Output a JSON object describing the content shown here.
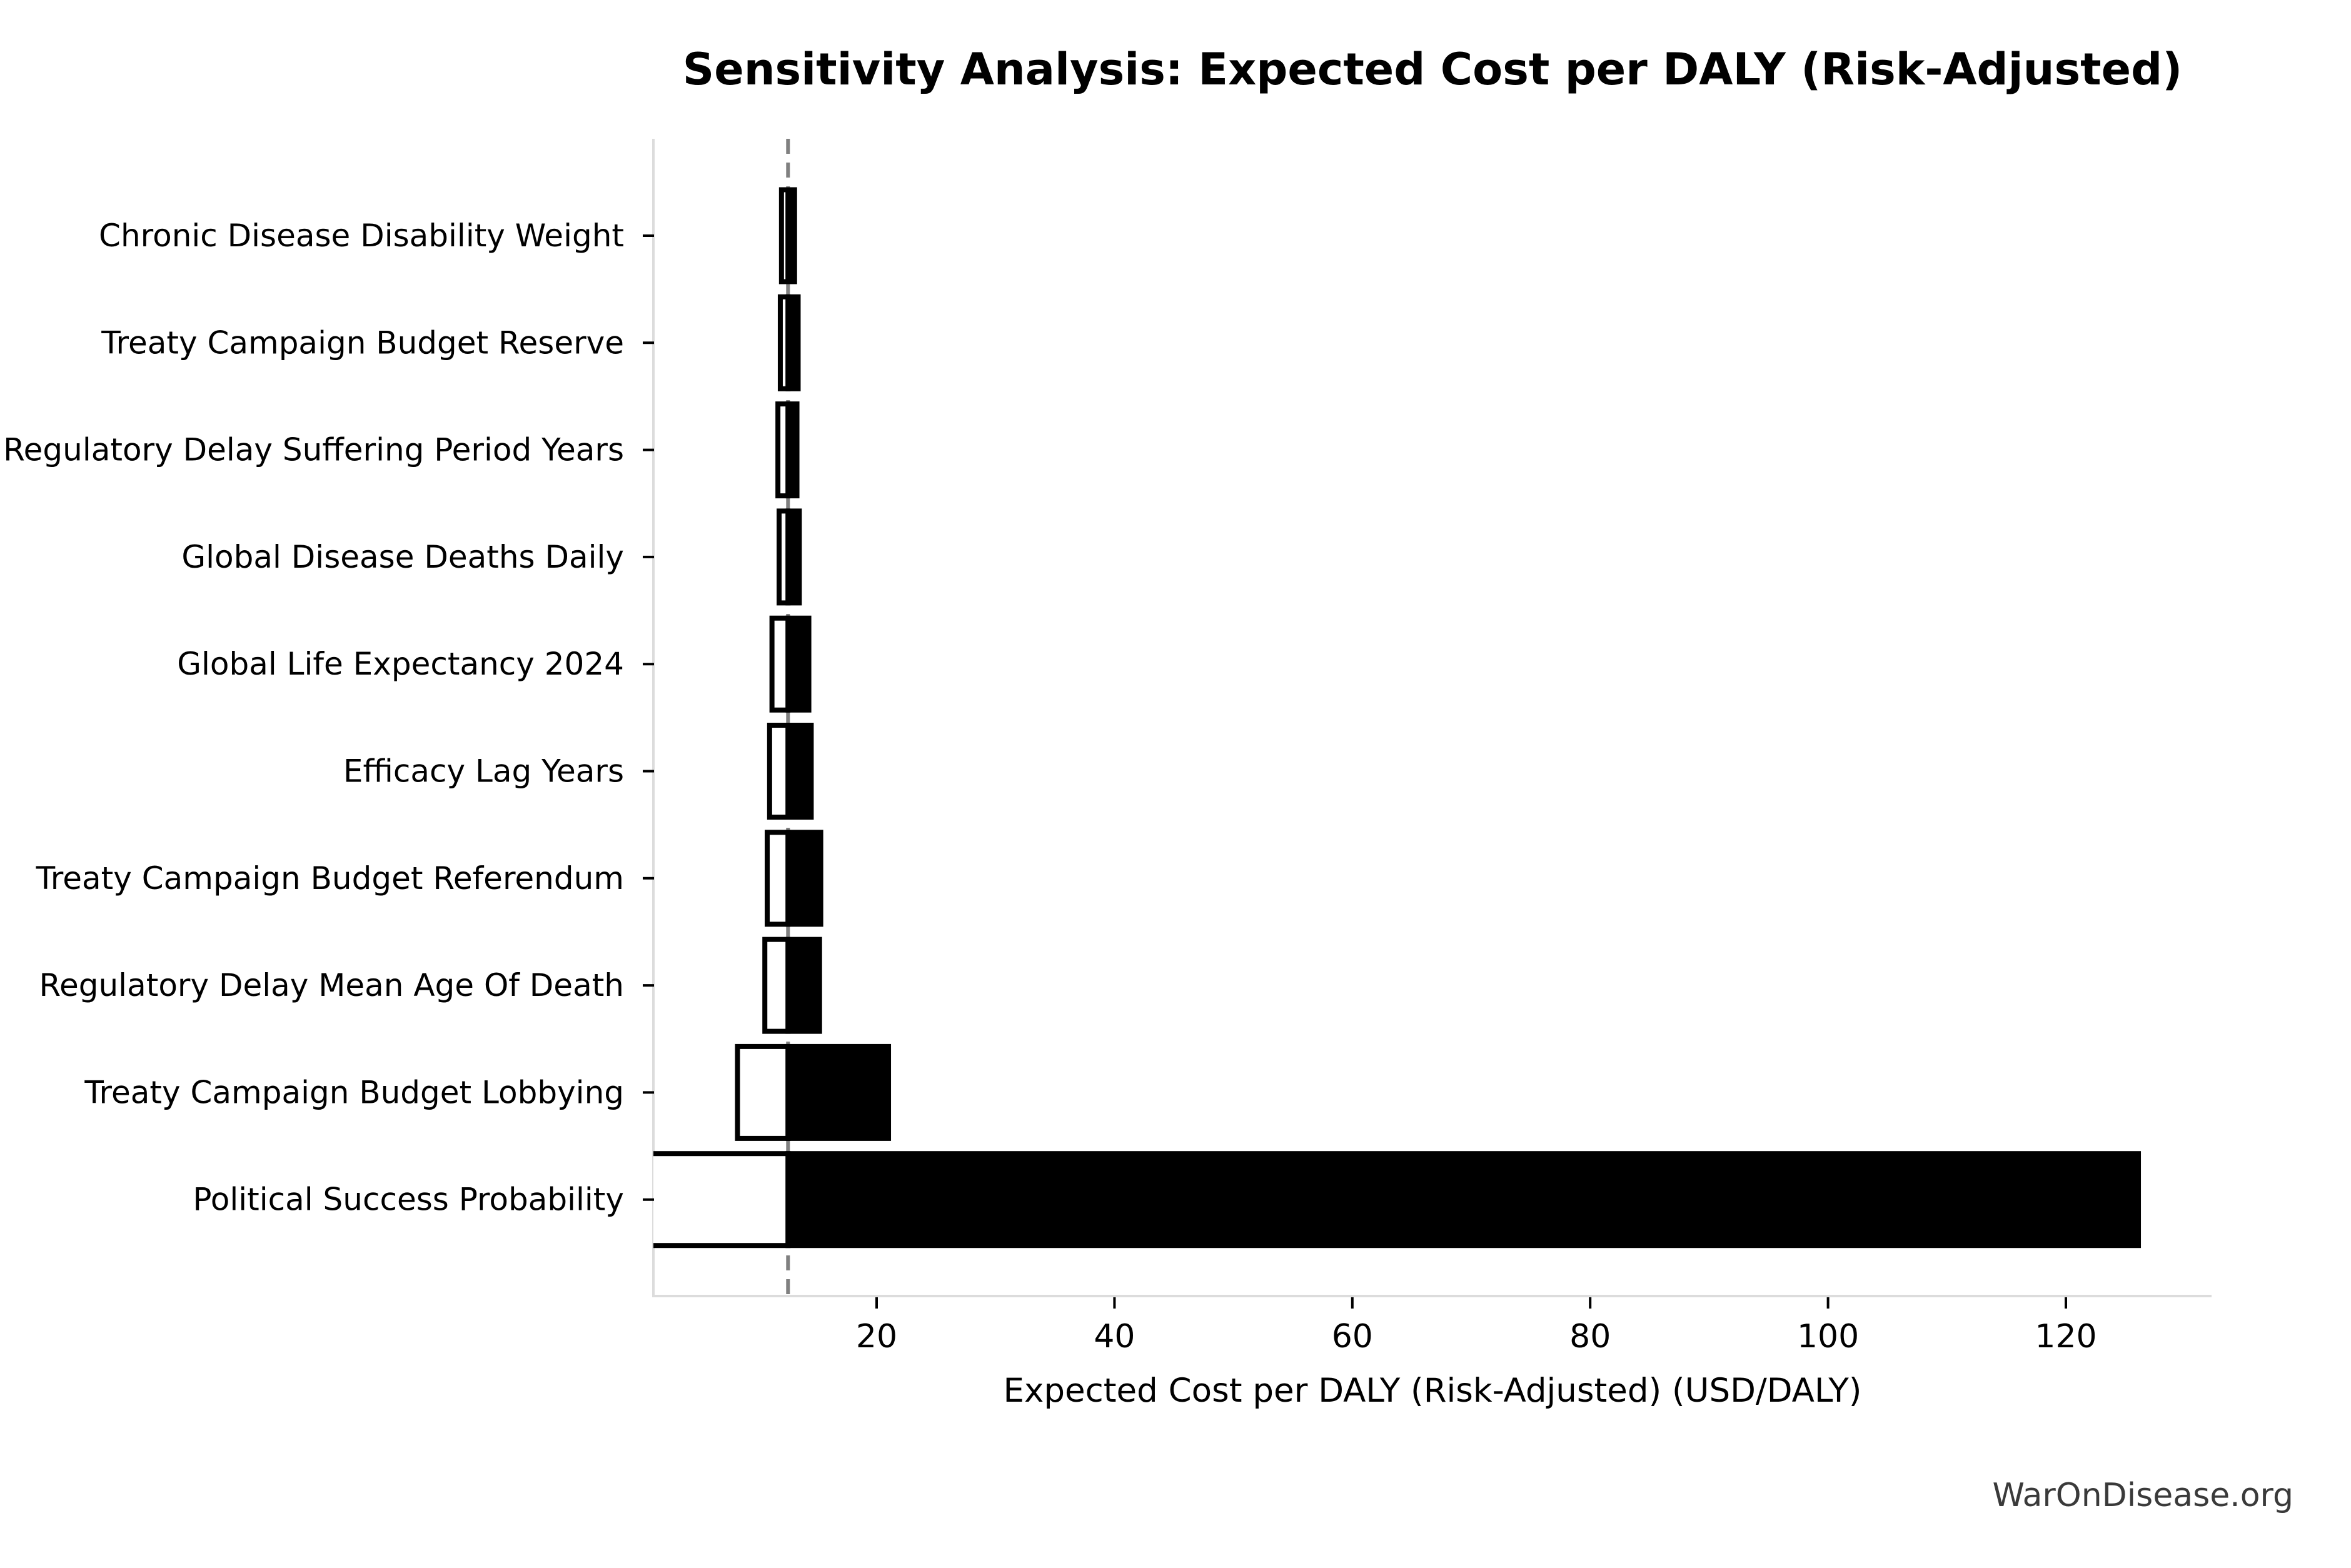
{
  "chart_data": {
    "type": "bar",
    "variant": "tornado-sensitivity",
    "orientation": "horizontal",
    "title": "Sensitivity Analysis: Expected Cost per DALY (Risk-Adjusted)",
    "xlabel": "Expected Cost per DALY (Risk-Adjusted) (USD/DALY)",
    "watermark": "WarOnDisease.org",
    "baseline_value": 12.55,
    "xlim": [
      1.23,
      132.25
    ],
    "x_ticks": [
      20,
      40,
      60,
      80,
      100,
      120
    ],
    "categories": [
      "Chronic Disease Disability Weight",
      "Treaty Campaign Budget Reserve",
      "Regulatory Delay Suffering Period Years",
      "Global Disease Deaths Daily",
      "Global Life Expectancy 2024",
      "Efficacy Lag Years",
      "Treaty Campaign Budget Referendum",
      "Regulatory Delay Mean Age Of Death",
      "Treaty Campaign Budget Lobbying",
      "Political Success Probability"
    ],
    "series": [
      {
        "name": "low",
        "fill": "#ffffff",
        "values": [
          12.0,
          11.9,
          11.7,
          11.8,
          11.2,
          11.0,
          10.8,
          10.6,
          8.3,
          1.2
        ]
      },
      {
        "name": "high",
        "fill": "#000000",
        "values": [
          13.1,
          13.4,
          13.3,
          13.5,
          14.3,
          14.5,
          15.3,
          15.2,
          21.0,
          126.1
        ]
      }
    ],
    "colors": {
      "bar_edge": "#000000",
      "low_fill": "#ffffff",
      "high_fill": "#000000",
      "baseline_line": "#808080",
      "spine": "#dcdcdc",
      "tick": "#000000",
      "text": "#000000",
      "watermark_text": "#3a3a3a"
    },
    "legend": "none",
    "grid": false
  }
}
